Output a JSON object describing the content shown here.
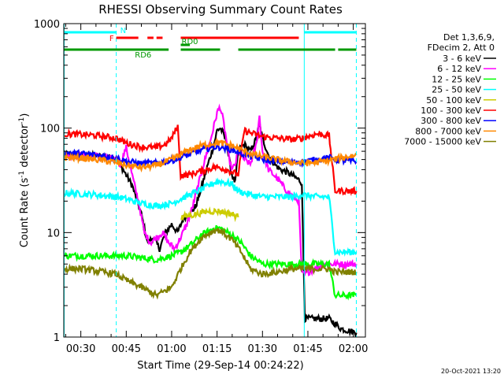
{
  "chart_data": {
    "type": "line",
    "title": "RHESSI Observing Summary Count Rates",
    "xlabel": "Start Time (29-Sep-14 00:24:22)",
    "ylabel_main": "Count Rate (s",
    "ylabel_sup1": "-1",
    "ylabel_mid": " detector",
    "ylabel_sup2": "-1",
    "ylabel_end": ")",
    "y_scale": "log",
    "ylim": [
      1,
      1000
    ],
    "xlim_minutes": [
      24.37,
      124
    ],
    "x_ticks": [
      {
        "label": "00:30",
        "minute": 30
      },
      {
        "label": "00:45",
        "minute": 45
      },
      {
        "label": "01:00",
        "minute": 60
      },
      {
        "label": "01:15",
        "minute": 75
      },
      {
        "label": "01:30",
        "minute": 90
      },
      {
        "label": "01:45",
        "minute": 105
      },
      {
        "label": "02:00",
        "minute": 120
      }
    ],
    "y_ticks": [
      {
        "label": "1",
        "value": 1
      },
      {
        "label": "10",
        "value": 10
      },
      {
        "label": "100",
        "value": 100
      },
      {
        "label": "1000",
        "value": 1000
      }
    ],
    "legend_header": [
      "Det 1,3,6,9,",
      "FDecim 2, Att 0"
    ],
    "timestamp": "20-Oct-2021 13:20",
    "vlines": [
      {
        "minute": 24.5,
        "color": "#00ffff",
        "style": "solid"
      },
      {
        "minute": 41.7,
        "color": "#00ffff",
        "style": "dashed"
      },
      {
        "minute": 103.8,
        "color": "#00ffff",
        "style": "solid"
      },
      {
        "minute": 121.0,
        "color": "#00ffff",
        "style": "dashed"
      }
    ],
    "flag_bars": [
      {
        "label": "N",
        "color": "#00ffff",
        "segments": [
          [
            24.5,
            41.7
          ],
          [
            103.8,
            121.0
          ]
        ],
        "level": 1
      },
      {
        "label": "F",
        "color": "#ff0000",
        "segments": [
          [
            41.7,
            49
          ],
          [
            52,
            54
          ],
          [
            55,
            57
          ],
          [
            63,
            102
          ]
        ],
        "level": 2
      },
      {
        "label": "RD0",
        "color": "#009900",
        "segments": [
          [
            63,
            66
          ]
        ],
        "level": 3
      },
      {
        "label": "RD6",
        "color": "#009900",
        "segments": [
          [
            24.5,
            59
          ],
          [
            63,
            76
          ],
          [
            82,
            114
          ],
          [
            115,
            121
          ]
        ],
        "level": 4
      }
    ],
    "series": [
      {
        "name": "3 - 6 keV",
        "color": "#000000",
        "x": [
          24.5,
          35,
          41.7,
          44,
          47,
          50,
          52,
          54,
          56,
          58,
          60,
          62,
          64,
          66,
          68,
          70,
          72,
          74,
          75,
          76,
          77,
          78,
          79,
          80,
          81,
          82,
          84,
          86,
          88,
          89,
          90,
          92,
          94,
          96,
          98,
          100,
          102,
          103,
          104,
          108,
          112,
          116,
          121
        ],
        "y": [
          55,
          54,
          52,
          40,
          28,
          15,
          8,
          9,
          7,
          10,
          12,
          10,
          14,
          15,
          18,
          28,
          45,
          70,
          95,
          100,
          90,
          75,
          50,
          35,
          30,
          60,
          70,
          60,
          80,
          110,
          80,
          55,
          45,
          40,
          38,
          35,
          32,
          30,
          1.5,
          1.5,
          1.5,
          1.2,
          1.1
        ]
      },
      {
        "name": "6 - 12 keV",
        "color": "#ff00ff",
        "x": [
          24.5,
          35,
          41.7,
          43,
          45,
          47,
          49,
          51,
          53,
          55,
          57,
          59,
          61,
          63,
          65,
          67,
          69,
          71,
          73,
          75,
          76,
          77,
          78,
          79,
          80,
          81,
          82,
          84,
          86,
          88,
          89,
          90,
          92,
          94,
          96,
          98,
          100,
          102,
          103,
          104,
          110,
          116,
          121
        ],
        "y": [
          55,
          54,
          50,
          45,
          65,
          35,
          20,
          10,
          8,
          9,
          10,
          8,
          7,
          9,
          12,
          18,
          30,
          50,
          80,
          140,
          160,
          120,
          80,
          50,
          40,
          45,
          60,
          50,
          45,
          70,
          130,
          60,
          40,
          35,
          30,
          25,
          22,
          20,
          4,
          4,
          5,
          5,
          5
        ]
      },
      {
        "name": "12 - 25 keV",
        "color": "#00ff00",
        "x": [
          24.5,
          35,
          45,
          55,
          60,
          63,
          66,
          70,
          74,
          76,
          80,
          83,
          86,
          90,
          95,
          100,
          103,
          108,
          112,
          114,
          118,
          121
        ],
        "y": [
          6,
          6,
          6,
          5.5,
          6,
          6.5,
          7.5,
          9.5,
          11,
          11,
          9.5,
          8,
          6,
          5,
          5,
          5,
          5,
          5,
          5,
          2.5,
          2.5,
          2.5
        ]
      },
      {
        "name": "25 - 50 keV",
        "color": "#00ffff",
        "x": [
          24.5,
          35,
          41.7,
          45,
          50,
          55,
          60,
          63,
          66,
          70,
          74,
          76,
          80,
          82,
          86,
          90,
          95,
          100,
          103,
          108,
          112,
          114,
          118,
          121
        ],
        "y": [
          24,
          23,
          22,
          21,
          19,
          18,
          19,
          21,
          23,
          26,
          30,
          31,
          29,
          25,
          23,
          22,
          22,
          22,
          23,
          22,
          22,
          6.5,
          6.5,
          6.5
        ]
      },
      {
        "name": "50 - 100 keV",
        "color": "#cccc00",
        "x": [
          63,
          68,
          72,
          76,
          80,
          82
        ],
        "y": [
          14,
          15,
          16,
          16,
          15,
          14
        ]
      },
      {
        "name": "100 - 300 keV",
        "color": "#ff0000",
        "x": [
          24.5,
          30,
          35,
          41.7,
          45,
          50,
          55,
          58,
          60,
          62,
          63,
          66,
          70,
          74,
          76,
          80,
          82,
          84,
          86,
          90,
          95,
          100,
          103,
          108,
          112,
          114,
          118,
          121
        ],
        "y": [
          88,
          87,
          85,
          80,
          72,
          66,
          65,
          70,
          80,
          105,
          35,
          36,
          39,
          42,
          42,
          38,
          36,
          95,
          90,
          83,
          80,
          78,
          80,
          88,
          85,
          25,
          25,
          25
        ]
      },
      {
        "name": "300 - 800 keV",
        "color": "#0000ff",
        "x": [
          24.5,
          30,
          35,
          41.7,
          45,
          50,
          55,
          60,
          65,
          70,
          74,
          76,
          80,
          84,
          88,
          92,
          96,
          100,
          104,
          108,
          112,
          116,
          121
        ],
        "y": [
          58,
          57,
          55,
          52,
          48,
          46,
          46,
          49,
          55,
          62,
          66,
          66,
          62,
          56,
          52,
          49,
          48,
          47,
          48,
          50,
          52,
          49,
          48
        ]
      },
      {
        "name": "800 - 7000 keV",
        "color": "#ff8800",
        "x": [
          24.5,
          30,
          35,
          41.7,
          45,
          50,
          55,
          60,
          63,
          66,
          70,
          74,
          76,
          80,
          84,
          88,
          92,
          96,
          100,
          104,
          108,
          112,
          116,
          121
        ],
        "y": [
          52,
          52,
          50,
          47,
          44,
          42,
          44,
          50,
          56,
          62,
          68,
          72,
          72,
          68,
          60,
          55,
          52,
          49,
          47,
          46,
          47,
          49,
          52,
          55
        ]
      },
      {
        "name": "7000 - 15000 keV",
        "color": "#808000",
        "x": [
          24.5,
          30,
          35,
          41.7,
          45,
          50,
          55,
          60,
          63,
          66,
          70,
          74,
          76,
          80,
          83,
          86,
          90,
          95,
          100,
          103,
          108,
          112,
          114,
          118,
          121
        ],
        "y": [
          4.5,
          4.5,
          4.3,
          4,
          3.5,
          3,
          2.5,
          3,
          4.5,
          6.5,
          9,
          10.5,
          10.5,
          8.5,
          6.5,
          4.5,
          4,
          4.2,
          4.5,
          4.5,
          4.5,
          4.5,
          4.2,
          4.2,
          4.2
        ]
      }
    ]
  }
}
